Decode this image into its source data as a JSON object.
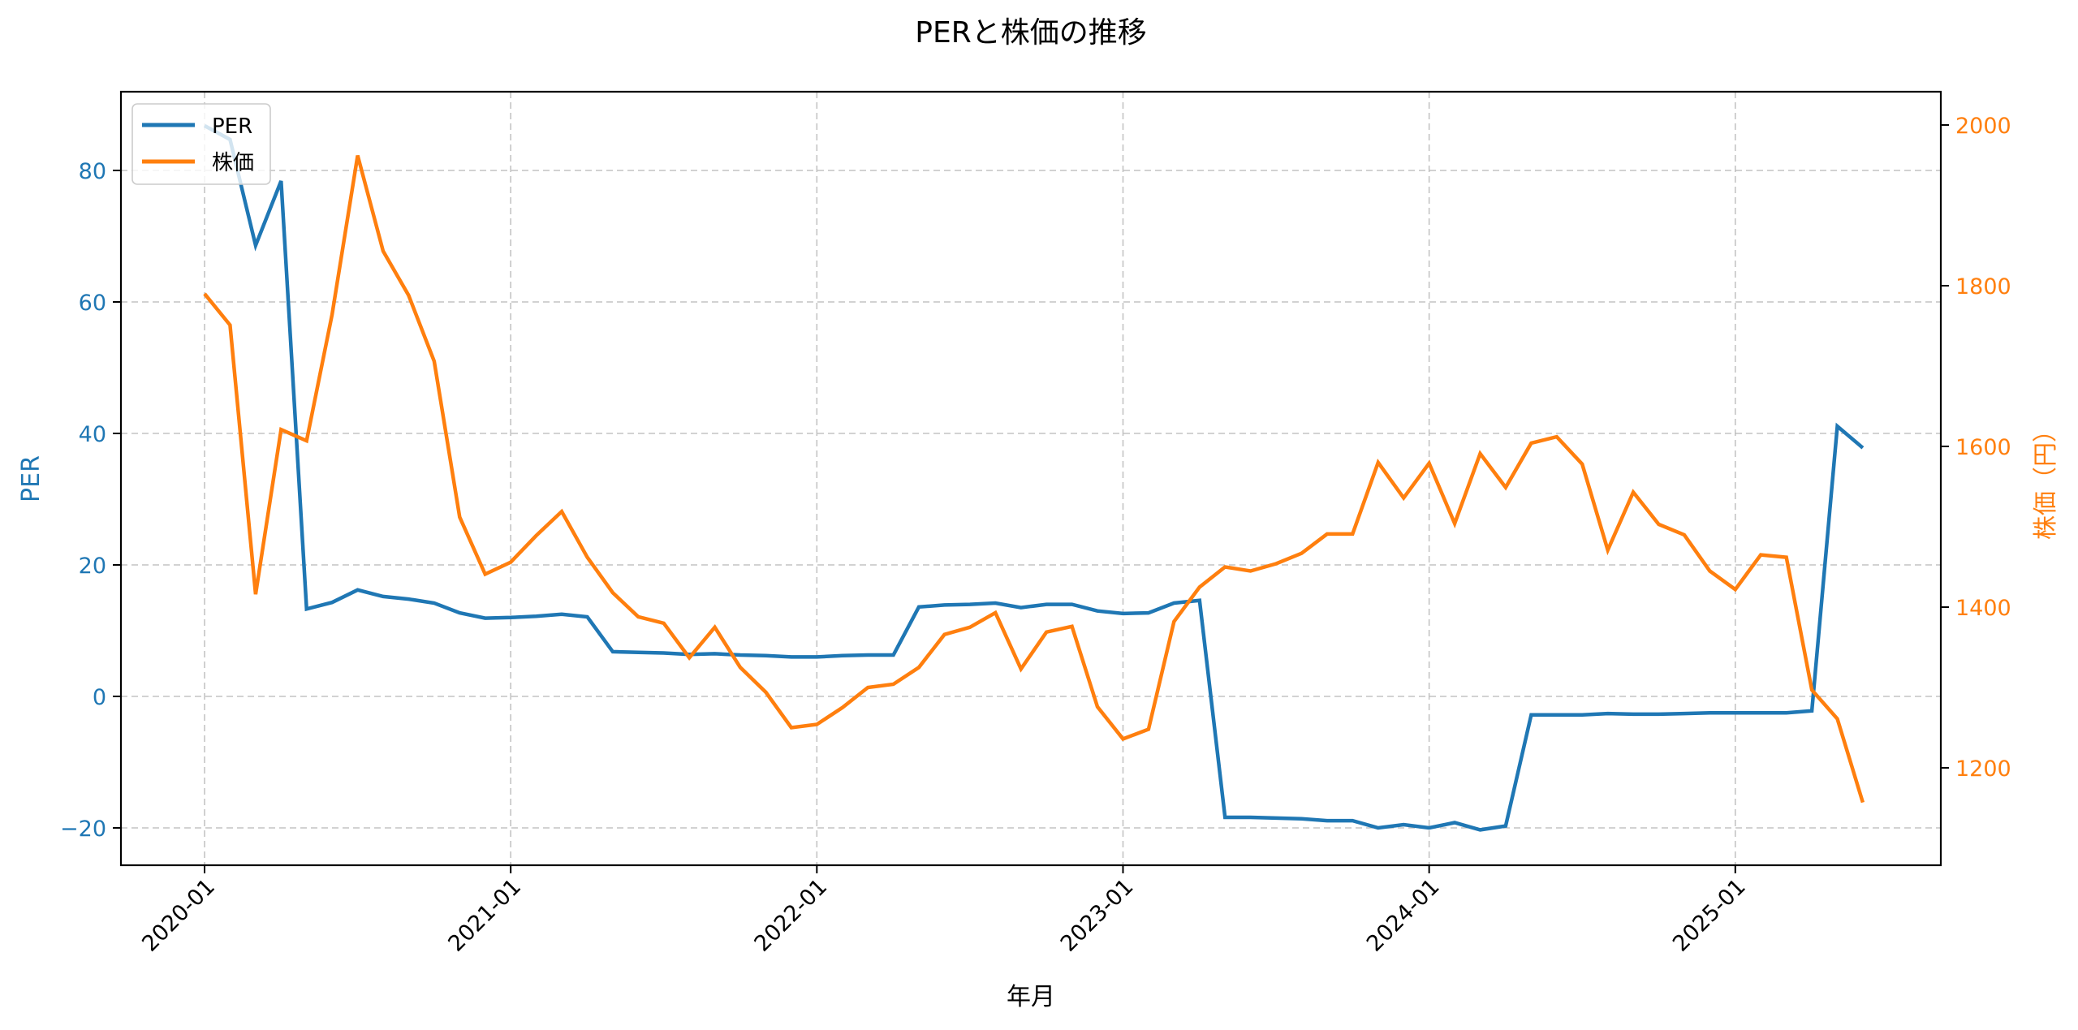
{
  "chart_data": {
    "type": "line",
    "title": "PERと株価の推移",
    "xlabel": "年月",
    "ylabel_left": "PER",
    "ylabel_right": "株価（円）",
    "ylim_left": [
      -25.7,
      92
    ],
    "ylim_right": [
      1079,
      2041
    ],
    "yticks_left": [
      -20,
      0,
      20,
      40,
      60,
      80
    ],
    "yticks_right": [
      1200,
      1400,
      1600,
      1800,
      2000
    ],
    "xticks": [
      "2020-01",
      "2021-01",
      "2022-01",
      "2023-01",
      "2024-01",
      "2025-01"
    ],
    "grid": true,
    "legend_position": "upper left",
    "x": [
      "2020-01",
      "2020-02",
      "2020-03",
      "2020-04",
      "2020-05",
      "2020-06",
      "2020-07",
      "2020-08",
      "2020-09",
      "2020-10",
      "2020-11",
      "2020-12",
      "2021-01",
      "2021-02",
      "2021-03",
      "2021-04",
      "2021-05",
      "2021-06",
      "2021-07",
      "2021-08",
      "2021-09",
      "2021-10",
      "2021-11",
      "2021-12",
      "2022-01",
      "2022-02",
      "2022-03",
      "2022-04",
      "2022-05",
      "2022-06",
      "2022-07",
      "2022-08",
      "2022-09",
      "2022-10",
      "2022-11",
      "2022-12",
      "2023-01",
      "2023-02",
      "2023-03",
      "2023-04",
      "2023-05",
      "2023-06",
      "2023-07",
      "2023-08",
      "2023-09",
      "2023-10",
      "2023-11",
      "2023-12",
      "2024-01",
      "2024-02",
      "2024-03",
      "2024-04",
      "2024-05",
      "2024-06",
      "2024-07",
      "2024-08",
      "2024-09",
      "2024-10",
      "2024-11",
      "2024-12",
      "2025-01",
      "2025-02",
      "2025-03",
      "2025-04",
      "2025-05",
      "2025-06"
    ],
    "series": [
      {
        "name": "PER",
        "axis": "left",
        "color": "#1f77b4",
        "values": [
          86.8,
          84.7,
          68.6,
          78.4,
          13.3,
          14.3,
          16.2,
          15.2,
          14.8,
          14.2,
          12.7,
          11.9,
          12.0,
          12.2,
          12.5,
          12.1,
          6.8,
          6.7,
          6.6,
          6.4,
          6.5,
          6.3,
          6.2,
          6.0,
          6.0,
          6.2,
          6.3,
          6.3,
          13.6,
          13.9,
          14.0,
          14.2,
          13.5,
          14.0,
          14.0,
          13.0,
          12.6,
          12.7,
          14.2,
          14.6,
          -18.4,
          -18.4,
          -18.5,
          -18.6,
          -18.9,
          -18.9,
          -20.0,
          -19.5,
          -20.0,
          -19.2,
          -20.3,
          -19.7,
          -2.8,
          -2.8,
          -2.8,
          -2.6,
          -2.7,
          -2.7,
          -2.6,
          -2.5,
          -2.5,
          -2.5,
          -2.5,
          -2.2,
          41.1,
          37.8
        ]
      },
      {
        "name": "株価",
        "axis": "right",
        "color": "#ff7f0e",
        "values": [
          1790,
          1751,
          1416,
          1621,
          1607,
          1764,
          1962,
          1843,
          1788,
          1706,
          1512,
          1441,
          1456,
          1489,
          1519,
          1462,
          1418,
          1388,
          1380,
          1337,
          1375,
          1325,
          1294,
          1250,
          1254,
          1275,
          1300,
          1304,
          1325,
          1366,
          1375,
          1393,
          1323,
          1369,
          1376,
          1276,
          1236,
          1248,
          1382,
          1425,
          1450,
          1445,
          1454,
          1467,
          1491,
          1491,
          1580,
          1536,
          1579,
          1504,
          1591,
          1549,
          1604,
          1612,
          1578,
          1471,
          1543,
          1503,
          1490,
          1445,
          1422,
          1465,
          1462,
          1297,
          1261,
          1157
        ]
      }
    ]
  },
  "colors": {
    "per": "#1f77b4",
    "price": "#ff7f0e",
    "grid": "#b0b0b0",
    "axis": "#000000"
  },
  "legend": {
    "items": [
      {
        "label": "PER"
      },
      {
        "label": "株価"
      }
    ]
  }
}
